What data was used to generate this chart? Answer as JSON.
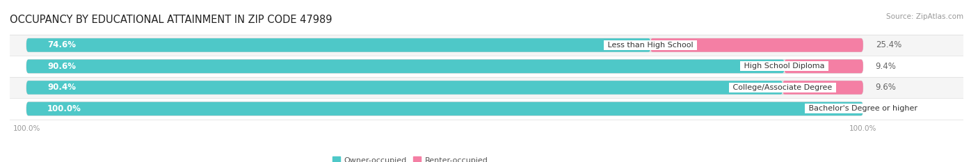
{
  "title": "OCCUPANCY BY EDUCATIONAL ATTAINMENT IN ZIP CODE 47989",
  "source": "Source: ZipAtlas.com",
  "categories": [
    "Less than High School",
    "High School Diploma",
    "College/Associate Degree",
    "Bachelor's Degree or higher"
  ],
  "owner_values": [
    74.6,
    90.6,
    90.4,
    100.0
  ],
  "renter_values": [
    25.4,
    9.4,
    9.6,
    0.0
  ],
  "owner_color": "#4EC8C8",
  "renter_color": "#F47FA4",
  "bar_bg_color": "#E8E8E8",
  "row_bg_even": "#F5F5F5",
  "row_bg_odd": "#FFFFFF",
  "owner_label": "Owner-occupied",
  "renter_label": "Renter-occupied",
  "title_fontsize": 10.5,
  "val_fontsize": 8.5,
  "cat_fontsize": 8.0,
  "tick_fontsize": 7.5,
  "source_fontsize": 7.5,
  "legend_fontsize": 8.0,
  "background_color": "#FFFFFF",
  "bar_height": 0.62,
  "xlim_left": -2,
  "xlim_right": 112
}
